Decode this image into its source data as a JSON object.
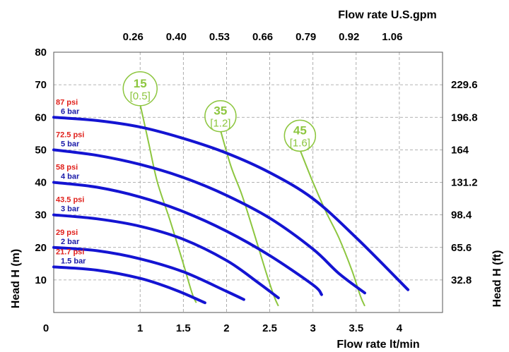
{
  "chart_data": {
    "type": "line",
    "xlabel": "Flow rate lt/min",
    "x2label": "Flow rate U.S.gpm",
    "ylabel": "Head H (m)",
    "y2label": "Head H (ft)",
    "xlim": [
      0,
      4.5
    ],
    "ylim": [
      0,
      80
    ],
    "x_ticks": [
      "0",
      "1",
      "1.5",
      "2",
      "2.5",
      "3",
      "3.5",
      "4"
    ],
    "x_tick_values": [
      0,
      1,
      1.5,
      2,
      2.5,
      3,
      3.5,
      4
    ],
    "y_ticks": [
      "10",
      "20",
      "30",
      "40",
      "50",
      "60",
      "70",
      "80"
    ],
    "y_tick_values": [
      10,
      20,
      30,
      40,
      50,
      60,
      70,
      80
    ],
    "x2_ticks": [
      "0.26",
      "0.40",
      "0.53",
      "0.66",
      "0.79",
      "0.92",
      "1.06"
    ],
    "x2_tick_positions": [
      1,
      1.5,
      2,
      2.5,
      3,
      3.5,
      4
    ],
    "y2_ticks": [
      "229.6",
      "196.8",
      "164",
      "131.2",
      "98.4",
      "65.6",
      "32.8"
    ],
    "y2_tick_positions": [
      70,
      60,
      50,
      40,
      30,
      20,
      10
    ],
    "grid": true,
    "colors": {
      "pressure_curve": "#1414d2",
      "air_curve": "#8dc63f",
      "psi_label": "#e0201b",
      "bar_label": "#1a1aa8",
      "grid": "#999999"
    },
    "series": [
      {
        "psi": "87 psi",
        "bar": "6 bar",
        "x": [
          0,
          0.5,
          1,
          1.5,
          2,
          2.5,
          3,
          3.5,
          4.1
        ],
        "y": [
          60,
          59,
          57,
          53.5,
          49,
          43,
          35,
          23,
          7
        ]
      },
      {
        "psi": "72.5 psi",
        "bar": "5 bar",
        "x": [
          0,
          0.5,
          1,
          1.5,
          2,
          2.5,
          3,
          3.3,
          3.6
        ],
        "y": [
          50,
          48.3,
          45.5,
          41.5,
          36,
          29,
          19.5,
          12,
          6
        ]
      },
      {
        "psi": "58 psi",
        "bar": "4 bar",
        "x": [
          0,
          0.5,
          1,
          1.5,
          2,
          2.5,
          3,
          3.1
        ],
        "y": [
          40,
          38.5,
          35.5,
          31,
          25,
          17.5,
          8.5,
          5.5
        ]
      },
      {
        "psi": "43.5 psi",
        "bar": "3 bar",
        "x": [
          0,
          0.5,
          1,
          1.5,
          2,
          2.35,
          2.6
        ],
        "y": [
          30,
          28.8,
          26.5,
          22.5,
          16,
          9.5,
          4.5
        ]
      },
      {
        "psi": "29 psi",
        "bar": "2 bar",
        "x": [
          0,
          0.5,
          1,
          1.5,
          2,
          2.2
        ],
        "y": [
          20,
          19,
          16.5,
          12.5,
          6.5,
          4
        ]
      },
      {
        "psi": "21.7 psi",
        "bar": "1.5 bar",
        "x": [
          0,
          0.5,
          1,
          1.4,
          1.75
        ],
        "y": [
          14,
          13,
          10.5,
          7,
          3
        ]
      }
    ],
    "air_consumption": [
      {
        "label": "15",
        "sublabel": "[0.5]",
        "x": [
          1,
          1.1,
          1.2,
          1.35,
          1.5,
          1.6,
          1.65
        ],
        "y": [
          64,
          52,
          40,
          28,
          15,
          6,
          3
        ]
      },
      {
        "label": "35",
        "sublabel": "[1.2]",
        "x": [
          1.93,
          2.05,
          2.18,
          2.3,
          2.45,
          2.55,
          2.6
        ],
        "y": [
          56,
          45,
          36,
          26,
          13,
          5,
          2
        ]
      },
      {
        "label": "45",
        "sublabel": "[1.6]",
        "x": [
          2.85,
          3,
          3.15,
          3.3,
          3.45,
          3.55,
          3.6
        ],
        "y": [
          50,
          40,
          31,
          23,
          13,
          5,
          2
        ]
      }
    ]
  }
}
